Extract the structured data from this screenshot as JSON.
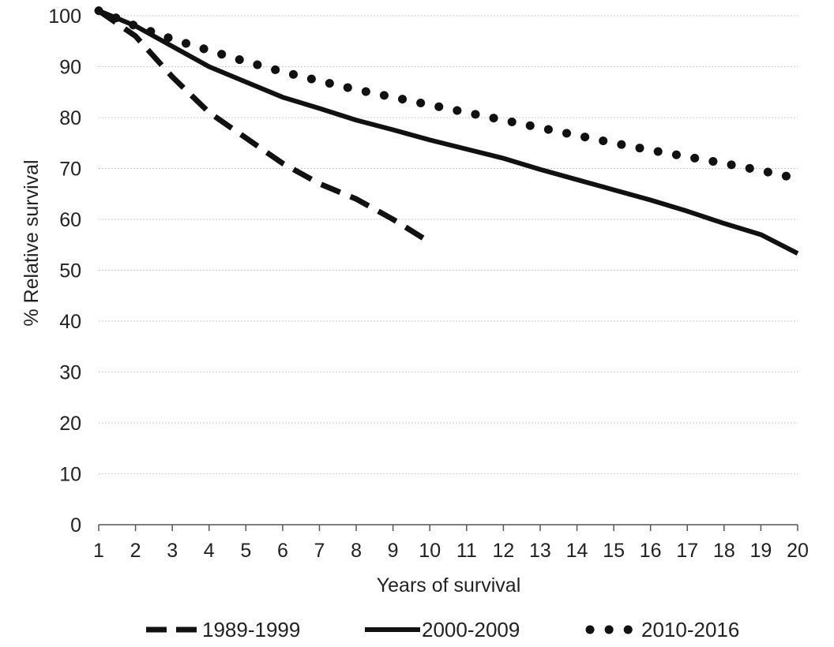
{
  "chart_data": {
    "type": "line",
    "title": "",
    "xlabel": "Years of survival",
    "ylabel": "% Relative survival",
    "xlim": [
      1,
      20
    ],
    "ylim": [
      0,
      100
    ],
    "x_ticks": [
      "1",
      "2",
      "3",
      "4",
      "5",
      "6",
      "7",
      "8",
      "9",
      "10",
      "11",
      "12",
      "13",
      "14",
      "15",
      "16",
      "17",
      "18",
      "19",
      "20"
    ],
    "y_ticks": [
      "0",
      "10",
      "20",
      "30",
      "40",
      "50",
      "60",
      "70",
      "80",
      "90",
      "100"
    ],
    "grid": "horizontal",
    "legend_position": "bottom",
    "series": [
      {
        "name": "1989-1999",
        "style": "dashed",
        "color": "#111111",
        "x": [
          1,
          2,
          3,
          4,
          5,
          6,
          7,
          8,
          9,
          10
        ],
        "values": [
          101,
          96,
          88,
          81,
          76,
          71,
          67,
          64,
          60,
          55.5
        ]
      },
      {
        "name": "2000-2009",
        "style": "solid",
        "color": "#111111",
        "x": [
          1,
          2,
          3,
          4,
          5,
          6,
          7,
          8,
          9,
          10,
          11,
          12,
          13,
          14,
          15,
          16,
          17,
          18,
          19,
          20
        ],
        "values": [
          101,
          98,
          94,
          90,
          87,
          84,
          81.8,
          79.5,
          77.6,
          75.6,
          73.8,
          72,
          69.8,
          67.8,
          65.8,
          63.8,
          61.6,
          59.2,
          57,
          53.3
        ]
      },
      {
        "name": "2010-2016",
        "style": "dotted",
        "color": "#111111",
        "x": [
          1,
          2,
          3,
          4,
          5,
          6,
          7,
          8,
          9,
          10,
          11,
          12,
          13,
          14,
          15,
          16,
          17,
          18,
          19,
          20
        ],
        "values": [
          101,
          98,
          95.4,
          93.2,
          91,
          89,
          87.2,
          85.5,
          84,
          82.5,
          81,
          79.5,
          78,
          76.5,
          75,
          73.6,
          72.3,
          71,
          69.6,
          68
        ]
      }
    ]
  }
}
